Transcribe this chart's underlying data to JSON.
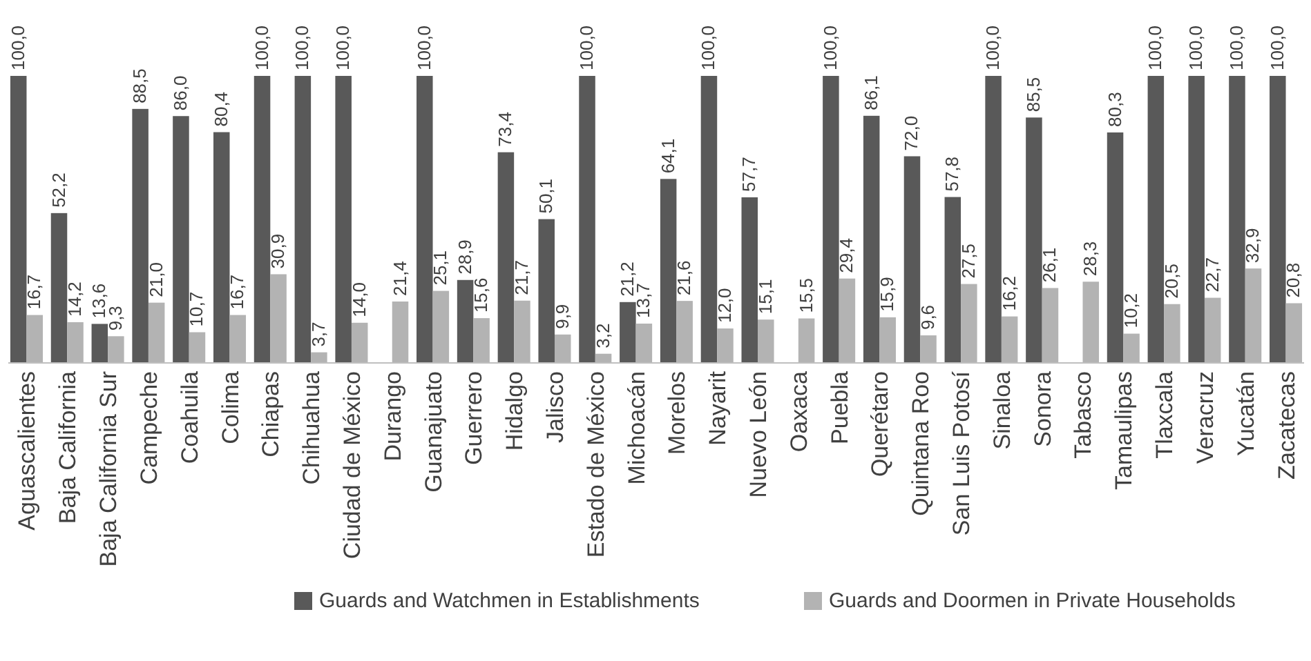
{
  "chart_data": {
    "type": "bar",
    "categories": [
      "Aguascalientes",
      "Baja California",
      "Baja California Sur",
      "Campeche",
      "Coahuila",
      "Colima",
      "Chiapas",
      "Chihuahua",
      "Ciudad de México",
      "Durango",
      "Guanajuato",
      "Guerrero",
      "Hidalgo",
      "Jalisco",
      "Estado de México",
      "Michoacán",
      "Morelos",
      "Nayarit",
      "Nuevo León",
      "Oaxaca",
      "Puebla",
      "Querétaro",
      "Quintana Roo",
      "San Luis Potosí",
      "Sinaloa",
      "Sonora",
      "Tabasco",
      "Tamaulipas",
      "Tlaxcala",
      "Veracruz",
      "Yucatán",
      "Zacatecas"
    ],
    "series": [
      {
        "name": "Guards and Watchmen in Establishments",
        "color": "#595959",
        "values": [
          100.0,
          52.2,
          13.6,
          88.5,
          86.0,
          80.4,
          100.0,
          100.0,
          100.0,
          null,
          100.0,
          28.9,
          73.4,
          50.1,
          100.0,
          21.2,
          64.1,
          100.0,
          57.7,
          null,
          100.0,
          86.1,
          72.0,
          57.8,
          100.0,
          85.5,
          null,
          80.3,
          100.0,
          100.0,
          100.0,
          100.0
        ],
        "value_labels": [
          "100,0",
          "52,2",
          "13,6",
          "88,5",
          "86,0",
          "80,4",
          "100,0",
          "100,0",
          "100,0",
          null,
          "100,0",
          "28,9",
          "73,4",
          "50,1",
          "100,0",
          "21,2",
          "64,1",
          "100,0",
          "57,7",
          null,
          "100,0",
          "86,1",
          "72,0",
          "57,8",
          "100,0",
          "85,5",
          null,
          "80,3",
          "100,0",
          "100,0",
          "100,0",
          "100,0"
        ]
      },
      {
        "name": "Guards and Doormen in Private Households",
        "color": "#b3b3b3",
        "values": [
          16.7,
          14.2,
          9.3,
          21.0,
          10.7,
          16.7,
          30.9,
          3.7,
          14.0,
          21.4,
          25.1,
          15.6,
          21.7,
          9.9,
          3.2,
          13.7,
          21.6,
          12.0,
          15.1,
          15.5,
          29.4,
          15.9,
          9.6,
          27.5,
          16.2,
          26.1,
          28.3,
          10.2,
          20.5,
          22.7,
          32.9,
          20.8
        ],
        "value_labels": [
          "16,7",
          "14,2",
          "9,3",
          "21,0",
          "10,7",
          "16,7",
          "30,9",
          "3,7",
          "14,0",
          "21,4",
          "25,1",
          "15,6",
          "21,7",
          "9,9",
          "3,2",
          "13,7",
          "21,6",
          "12,0",
          "15,1",
          "15,5",
          "29,4",
          "15,9",
          "9,6",
          "27,5",
          "16,2",
          "26,1",
          "28,3",
          "10,2",
          "20,5",
          "22,7",
          "32,9",
          "20,8"
        ]
      }
    ],
    "ylim": [
      0,
      100
    ],
    "legend": "bottom",
    "tick_labels": "x"
  }
}
